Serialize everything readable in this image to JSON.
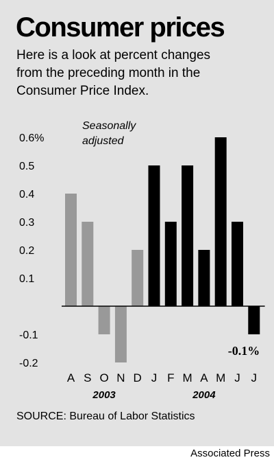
{
  "header": {
    "title": "Consumer prices",
    "subtitle_lines": [
      "Here is a look at percent changes",
      "from the preceding month in the",
      "Consumer Price Index."
    ]
  },
  "chart_data": {
    "type": "bar",
    "categories": [
      "A",
      "S",
      "O",
      "N",
      "D",
      "J",
      "F",
      "M",
      "A",
      "M",
      "J",
      "J"
    ],
    "values": [
      0.4,
      0.3,
      -0.1,
      -0.2,
      0.2,
      0.5,
      0.3,
      0.5,
      0.2,
      0.6,
      0.3,
      -0.1
    ],
    "year_groups": [
      {
        "label": "2003",
        "months": [
          "A",
          "S",
          "O",
          "N",
          "D"
        ],
        "color": "#999999"
      },
      {
        "label": "2004",
        "months": [
          "J",
          "F",
          "M",
          "A",
          "M",
          "J",
          "J"
        ],
        "color": "#000000"
      }
    ],
    "y_ticks": [
      "0.6%",
      "0.5",
      "0.4",
      "0.3",
      "0.2",
      "0.1",
      "",
      "-0.1",
      "-0.2"
    ],
    "y_tick_values": [
      0.6,
      0.5,
      0.4,
      0.3,
      0.2,
      0.1,
      0,
      -0.1,
      -0.2
    ],
    "ylim": [
      -0.2,
      0.6
    ],
    "annotation_lines": [
      "Seasonally",
      "adjusted"
    ],
    "callout": "-0.1%",
    "grid": false
  },
  "footer": {
    "source": "SOURCE: Bureau of Labor Statistics",
    "credit": "Associated Press"
  }
}
